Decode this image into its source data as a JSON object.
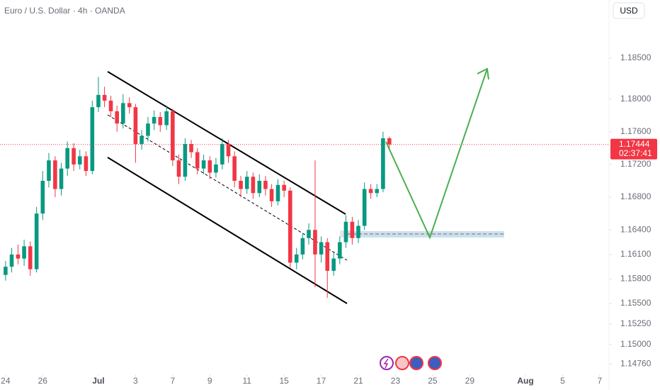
{
  "header": {
    "title": "Euro / U.S. Dollar · 4h · OANDA",
    "currency": "USD"
  },
  "chart_data": {
    "type": "candlestick",
    "colors": {
      "up": "#089981",
      "down": "#f23645"
    },
    "x": [
      0,
      0.33,
      0.67,
      1,
      1.33,
      1.67,
      2,
      2.33,
      2.67,
      3,
      3.33,
      3.67,
      4,
      4.33,
      4.67,
      5,
      5.33,
      5.67,
      6,
      6.33,
      6.67,
      7,
      7.33,
      7.67,
      8,
      8.33,
      8.67,
      9,
      9.33,
      9.67,
      10,
      10.33,
      10.67,
      11,
      11.33,
      11.67,
      12,
      12.33,
      12.67,
      13,
      13.33,
      13.67,
      14,
      14.33,
      14.67,
      15,
      15.33,
      15.67,
      16,
      16.33,
      16.67,
      17,
      17.33,
      17.67,
      18,
      18.33,
      18.67,
      19,
      19.33,
      19.67,
      20,
      20.33,
      20.67
    ],
    "candles": [
      [
        1.1585,
        1.1602,
        1.1578,
        1.1595
      ],
      [
        1.1595,
        1.1618,
        1.1588,
        1.161
      ],
      [
        1.161,
        1.1622,
        1.1598,
        1.1605
      ],
      [
        1.1605,
        1.1628,
        1.1596,
        1.162
      ],
      [
        1.162,
        1.1626,
        1.1584,
        1.1592
      ],
      [
        1.1592,
        1.1668,
        1.1588,
        1.166
      ],
      [
        1.166,
        1.1712,
        1.1652,
        1.17
      ],
      [
        1.17,
        1.1734,
        1.1692,
        1.1725
      ],
      [
        1.1725,
        1.173,
        1.168,
        1.169
      ],
      [
        1.169,
        1.1722,
        1.1682,
        1.1715
      ],
      [
        1.1715,
        1.1748,
        1.1706,
        1.174
      ],
      [
        1.174,
        1.1746,
        1.1712,
        1.172
      ],
      [
        1.172,
        1.1738,
        1.1714,
        1.173
      ],
      [
        1.173,
        1.1736,
        1.1706,
        1.1712
      ],
      [
        1.1712,
        1.1798,
        1.1708,
        1.179
      ],
      [
        1.179,
        1.1827,
        1.1784,
        1.1805
      ],
      [
        1.1805,
        1.1815,
        1.179,
        1.1798
      ],
      [
        1.1798,
        1.1804,
        1.1778,
        1.1785
      ],
      [
        1.1785,
        1.1792,
        1.176,
        1.177
      ],
      [
        1.177,
        1.1806,
        1.1764,
        1.1795
      ],
      [
        1.1795,
        1.1802,
        1.1782,
        1.179
      ],
      [
        1.179,
        1.1794,
        1.1722,
        1.1745
      ],
      [
        1.1745,
        1.1762,
        1.1738,
        1.1755
      ],
      [
        1.1755,
        1.1778,
        1.1748,
        1.177
      ],
      [
        1.177,
        1.1786,
        1.1762,
        1.1778
      ],
      [
        1.1778,
        1.1784,
        1.176,
        1.1768
      ],
      [
        1.1768,
        1.1792,
        1.1762,
        1.1785
      ],
      [
        1.1785,
        1.1788,
        1.1718,
        1.1725
      ],
      [
        1.1725,
        1.1732,
        1.1696,
        1.1705
      ],
      [
        1.1705,
        1.1752,
        1.17,
        1.1745
      ],
      [
        1.1745,
        1.175,
        1.1728,
        1.1735
      ],
      [
        1.1735,
        1.174,
        1.1708,
        1.1715
      ],
      [
        1.1715,
        1.1732,
        1.1708,
        1.1725
      ],
      [
        1.1725,
        1.173,
        1.1702,
        1.171
      ],
      [
        1.171,
        1.1728,
        1.1704,
        1.172
      ],
      [
        1.172,
        1.1752,
        1.1714,
        1.1745
      ],
      [
        1.1745,
        1.175,
        1.1722,
        1.173
      ],
      [
        1.173,
        1.1736,
        1.1692,
        1.17
      ],
      [
        1.17,
        1.1706,
        1.168,
        1.169
      ],
      [
        1.169,
        1.1712,
        1.1684,
        1.1705
      ],
      [
        1.1705,
        1.171,
        1.1678,
        1.1685
      ],
      [
        1.1685,
        1.1708,
        1.168,
        1.17
      ],
      [
        1.17,
        1.1706,
        1.1682,
        1.169
      ],
      [
        1.169,
        1.1696,
        1.1668,
        1.1675
      ],
      [
        1.1675,
        1.1702,
        1.167,
        1.1695
      ],
      [
        1.1695,
        1.17,
        1.168,
        1.1688
      ],
      [
        1.1688,
        1.1692,
        1.1594,
        1.16
      ],
      [
        1.16,
        1.1618,
        1.1592,
        1.161
      ],
      [
        1.161,
        1.1636,
        1.1604,
        1.163
      ],
      [
        1.163,
        1.1648,
        1.1622,
        1.164
      ],
      [
        1.164,
        1.1725,
        1.157,
        1.161
      ],
      [
        1.161,
        1.1632,
        1.16,
        1.1625
      ],
      [
        1.1625,
        1.163,
        1.1557,
        1.159
      ],
      [
        1.159,
        1.1612,
        1.1584,
        1.1605
      ],
      [
        1.1605,
        1.1632,
        1.1598,
        1.1625
      ],
      [
        1.1625,
        1.1658,
        1.1618,
        1.165
      ],
      [
        1.165,
        1.1656,
        1.1622,
        1.163
      ],
      [
        1.163,
        1.1652,
        1.1624,
        1.1645
      ],
      [
        1.1645,
        1.1698,
        1.164,
        1.169
      ],
      [
        1.169,
        1.1696,
        1.1678,
        1.1685
      ],
      [
        1.1685,
        1.1696,
        1.168,
        1.169
      ],
      [
        1.169,
        1.176,
        1.1686,
        1.1752
      ],
      [
        1.1752,
        1.1754,
        1.174,
        1.17444
      ]
    ],
    "countdown": "02:37:41",
    "ylim": [
      1.1466,
      1.1921
    ],
    "yticks": [
      {
        "value": 1.185,
        "label": "1.18500"
      },
      {
        "value": 1.18,
        "label": "1.18000"
      },
      {
        "value": 1.176,
        "label": "1.17600"
      },
      {
        "value": 1.172,
        "label": "1.17200"
      },
      {
        "value": 1.168,
        "label": "1.16800"
      },
      {
        "value": 1.164,
        "label": "1.16400"
      },
      {
        "value": 1.161,
        "label": "1.16100"
      },
      {
        "value": 1.158,
        "label": "1.15800"
      },
      {
        "value": 1.155,
        "label": "1.15500"
      },
      {
        "value": 1.1525,
        "label": "1.15250"
      },
      {
        "value": 1.15,
        "label": "1.15000"
      },
      {
        "value": 1.1476,
        "label": "1.14760"
      }
    ],
    "xlim": [
      -0.3,
      32.5
    ],
    "xticks": [
      {
        "value": 0,
        "label": "24"
      },
      {
        "value": 2,
        "label": "26"
      },
      {
        "value": 5,
        "label": "Jul"
      },
      {
        "value": 7,
        "label": "3"
      },
      {
        "value": 9,
        "label": "7"
      },
      {
        "value": 11,
        "label": "9"
      },
      {
        "value": 13,
        "label": "11"
      },
      {
        "value": 15,
        "label": "15"
      },
      {
        "value": 17,
        "label": "17"
      },
      {
        "value": 19,
        "label": "21"
      },
      {
        "value": 21,
        "label": "23"
      },
      {
        "value": 23,
        "label": "25"
      },
      {
        "value": 25,
        "label": "29"
      },
      {
        "value": 28,
        "label": "Aug"
      },
      {
        "value": 30,
        "label": "5"
      },
      {
        "value": 32,
        "label": "7"
      }
    ]
  }
}
